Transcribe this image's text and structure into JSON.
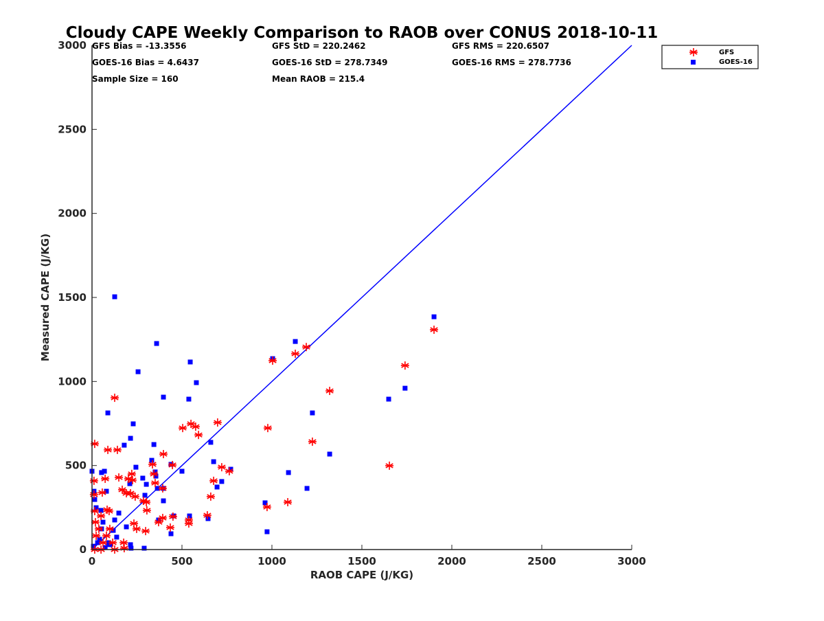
{
  "chart_data": {
    "type": "scatter",
    "title": "Cloudy CAPE Weekly Comparison to RAOB over CONUS 2018-10-11",
    "xlabel": "RAOB CAPE (J/KG)",
    "ylabel": "Measured CAPE (J/KG)",
    "xlim": [
      0,
      3000
    ],
    "ylim": [
      0,
      3000
    ],
    "xticks": [
      "0",
      "500",
      "1000",
      "1500",
      "2000",
      "2500",
      "3000"
    ],
    "yticks": [
      "0",
      "500",
      "1000",
      "1500",
      "2000",
      "2500",
      "3000"
    ],
    "grid": false,
    "legend_position": "top-right outside",
    "stats": [
      "GFS Bias = -13.3556",
      "GFS StD = 220.2462",
      "GFS RMS = 220.6507",
      "GOES-16 Bias = 4.6437",
      "GOES-16 StD = 278.7349",
      "GOES-16 RMS = 278.7736",
      "Sample Size = 160",
      "Mean RAOB = 215.4"
    ],
    "reference_line": {
      "name": "1:1",
      "x": [
        0,
        3000
      ],
      "y": [
        0,
        3000
      ],
      "color": "#0000ff"
    },
    "series": [
      {
        "name": "GFS",
        "marker": "asterisk",
        "color": "#ff0000",
        "points": [
          [
            15,
            629
          ],
          [
            126,
            903
          ],
          [
            88,
            593
          ],
          [
            141,
            593
          ],
          [
            397,
            568
          ],
          [
            504,
            723
          ],
          [
            550,
            748
          ],
          [
            576,
            731
          ],
          [
            592,
            682
          ],
          [
            698,
            756
          ],
          [
            977,
            723
          ],
          [
            1004,
            1124
          ],
          [
            1130,
            1165
          ],
          [
            1191,
            1205
          ],
          [
            1321,
            944
          ],
          [
            1225,
            642
          ],
          [
            1088,
            282
          ],
          [
            973,
            253
          ],
          [
            1653,
            499
          ],
          [
            1740,
            1095
          ],
          [
            1901,
            1308
          ],
          [
            721,
            490
          ],
          [
            763,
            466
          ],
          [
            676,
            409
          ],
          [
            660,
            315
          ],
          [
            641,
            204
          ],
          [
            538,
            176
          ],
          [
            538,
            155
          ],
          [
            450,
            196
          ],
          [
            447,
            503
          ],
          [
            336,
            507
          ],
          [
            344,
            450
          ],
          [
            351,
            396
          ],
          [
            393,
            364
          ],
          [
            370,
            163
          ],
          [
            393,
            188
          ],
          [
            435,
            131
          ],
          [
            305,
            233
          ],
          [
            286,
            290
          ],
          [
            302,
            282
          ],
          [
            298,
            110
          ],
          [
            221,
            450
          ],
          [
            202,
            421
          ],
          [
            149,
            429
          ],
          [
            168,
            356
          ],
          [
            191,
            335
          ],
          [
            214,
            335
          ],
          [
            225,
            413
          ],
          [
            240,
            315
          ],
          [
            248,
            123
          ],
          [
            73,
            421
          ],
          [
            57,
            339
          ],
          [
            84,
            237
          ],
          [
            95,
            229
          ],
          [
            50,
            200
          ],
          [
            11,
            409
          ],
          [
            11,
            327
          ],
          [
            15,
            229
          ],
          [
            19,
            163
          ],
          [
            38,
            123
          ],
          [
            23,
            82
          ],
          [
            80,
            82
          ],
          [
            115,
            41
          ],
          [
            176,
            41
          ],
          [
            179,
            8
          ],
          [
            233,
            155
          ],
          [
            50,
            0
          ],
          [
            15,
            0
          ],
          [
            99,
            123
          ],
          [
            61,
            41
          ],
          [
            126,
            0
          ]
        ]
      },
      {
        "name": "GOES-16",
        "marker": "square",
        "color": "#0000ff",
        "points": [
          [
            126,
            1504
          ],
          [
            359,
            1226
          ],
          [
            256,
            1058
          ],
          [
            546,
            1116
          ],
          [
            580,
            993
          ],
          [
            538,
            895
          ],
          [
            397,
            907
          ],
          [
            88,
            813
          ],
          [
            229,
            748
          ],
          [
            179,
            621
          ],
          [
            214,
            662
          ],
          [
            344,
            625
          ],
          [
            660,
            638
          ],
          [
            676,
            523
          ],
          [
            771,
            478
          ],
          [
            721,
            405
          ],
          [
            695,
            372
          ],
          [
            500,
            466
          ],
          [
            439,
            507
          ],
          [
            332,
            531
          ],
          [
            244,
            490
          ],
          [
            69,
            466
          ],
          [
            0,
            466
          ],
          [
            53,
            458
          ],
          [
            351,
            462
          ],
          [
            355,
            437
          ],
          [
            282,
            425
          ],
          [
            302,
            388
          ],
          [
            210,
            392
          ],
          [
            80,
            347
          ],
          [
            11,
            347
          ],
          [
            397,
            364
          ],
          [
            363,
            364
          ],
          [
            294,
            323
          ],
          [
            397,
            290
          ],
          [
            962,
            278
          ],
          [
            973,
            106
          ],
          [
            1004,
            1136
          ],
          [
            1130,
            1238
          ],
          [
            1225,
            813
          ],
          [
            1321,
            568
          ],
          [
            1092,
            458
          ],
          [
            1195,
            364
          ],
          [
            1649,
            895
          ],
          [
            1740,
            960
          ],
          [
            1901,
            1385
          ],
          [
            542,
            200
          ],
          [
            454,
            200
          ],
          [
            439,
            94
          ],
          [
            370,
            176
          ],
          [
            645,
            184
          ],
          [
            191,
            135
          ],
          [
            149,
            217
          ],
          [
            126,
            176
          ],
          [
            50,
            233
          ],
          [
            23,
            249
          ],
          [
            15,
            298
          ],
          [
            61,
            163
          ],
          [
            118,
            114
          ],
          [
            137,
            74
          ],
          [
            92,
            41
          ],
          [
            214,
            29
          ],
          [
            217,
            8
          ],
          [
            290,
            8
          ],
          [
            42,
            61
          ],
          [
            8,
            20
          ],
          [
            31,
            41
          ],
          [
            99,
            29
          ],
          [
            73,
            12
          ],
          [
            53,
            123
          ]
        ]
      }
    ]
  }
}
